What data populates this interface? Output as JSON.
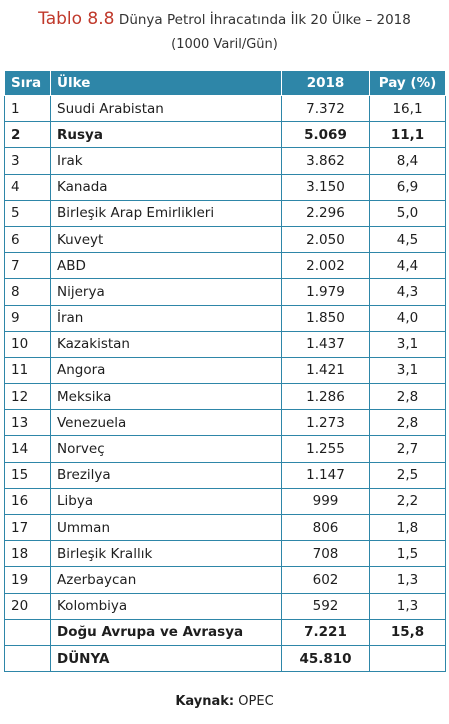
{
  "caption": {
    "label": "Tablo 8.8",
    "title": "Dünya Petrol İhracatında İlk 20 Ülke – 2018",
    "unit": "(1000 Varil/Gün)"
  },
  "table": {
    "headers": [
      "Sıra",
      "Ülke",
      "2018",
      "Pay (%)"
    ],
    "rows": [
      {
        "rank": "1",
        "country": "Suudi Arabistan",
        "value": "7.372",
        "share": "16,1",
        "bold": false
      },
      {
        "rank": "2",
        "country": "Rusya",
        "value": "5.069",
        "share": "11,1",
        "bold": true
      },
      {
        "rank": "3",
        "country": "Irak",
        "value": "3.862",
        "share": "8,4",
        "bold": false
      },
      {
        "rank": "4",
        "country": "Kanada",
        "value": "3.150",
        "share": "6,9",
        "bold": false
      },
      {
        "rank": "5",
        "country": "Birleşik Arap Emirlikleri",
        "value": "2.296",
        "share": "5,0",
        "bold": false
      },
      {
        "rank": "6",
        "country": "Kuveyt",
        "value": "2.050",
        "share": "4,5",
        "bold": false
      },
      {
        "rank": "7",
        "country": "ABD",
        "value": "2.002",
        "share": "4,4",
        "bold": false
      },
      {
        "rank": "8",
        "country": "Nijerya",
        "value": "1.979",
        "share": "4,3",
        "bold": false
      },
      {
        "rank": "9",
        "country": "İran",
        "value": "1.850",
        "share": "4,0",
        "bold": false
      },
      {
        "rank": "10",
        "country": "Kazakistan",
        "value": "1.437",
        "share": "3,1",
        "bold": false
      },
      {
        "rank": "11",
        "country": "Angora",
        "value": "1.421",
        "share": "3,1",
        "bold": false
      },
      {
        "rank": "12",
        "country": "Meksika",
        "value": "1.286",
        "share": "2,8",
        "bold": false
      },
      {
        "rank": "13",
        "country": "Venezuela",
        "value": "1.273",
        "share": "2,8",
        "bold": false
      },
      {
        "rank": "14",
        "country": "Norveç",
        "value": "1.255",
        "share": "2,7",
        "bold": false
      },
      {
        "rank": "15",
        "country": "Brezilya",
        "value": "1.147",
        "share": "2,5",
        "bold": false
      },
      {
        "rank": "16",
        "country": "Libya",
        "value": "999",
        "share": "2,2",
        "bold": false
      },
      {
        "rank": "17",
        "country": "Umman",
        "value": "806",
        "share": "1,8",
        "bold": false
      },
      {
        "rank": "18",
        "country": "Birleşik Krallık",
        "value": "708",
        "share": "1,5",
        "bold": false
      },
      {
        "rank": "19",
        "country": "Azerbaycan",
        "value": "602",
        "share": "1,3",
        "bold": false
      },
      {
        "rank": "20",
        "country": "Kolombiya",
        "value": "592",
        "share": "1,3",
        "bold": false
      },
      {
        "rank": "",
        "country": "Doğu Avrupa ve Avrasya",
        "value": "7.221",
        "share": "15,8",
        "bold": true
      },
      {
        "rank": "",
        "country": "DÜNYA",
        "value": "45.810",
        "share": "",
        "bold": true
      }
    ]
  },
  "source": {
    "label": "Kaynak:",
    "value": "OPEC"
  },
  "colors": {
    "accent": "#2e86a8",
    "caption_label": "#c0392b"
  }
}
